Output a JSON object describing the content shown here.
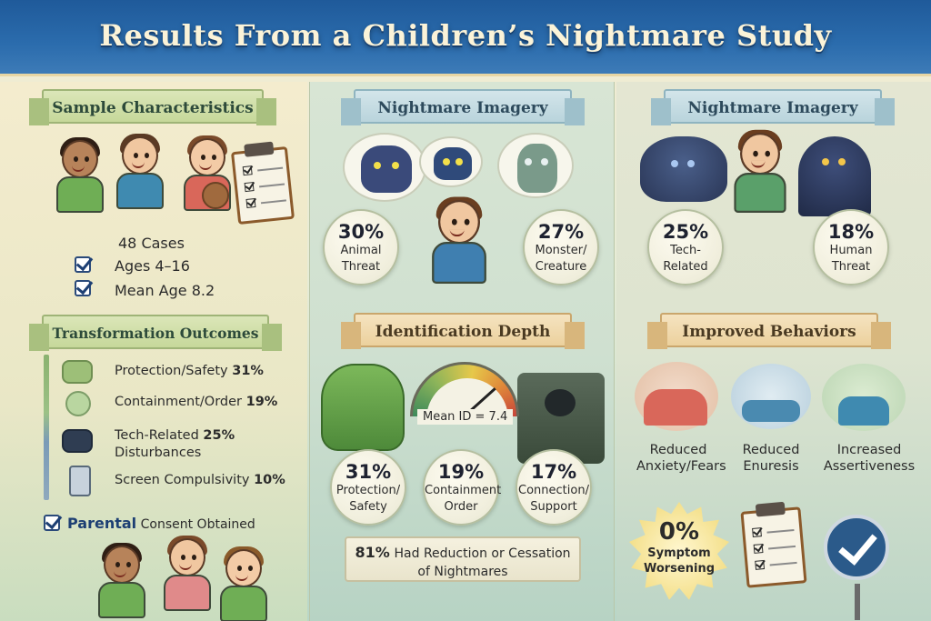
{
  "title": "Results From a Children’s Nightmare Study",
  "sample": {
    "heading": "Sample Characteristics",
    "cases": "48 Cases",
    "ages": "Ages 4–16",
    "mean_age": "Mean Age 8.2"
  },
  "outcomes": {
    "heading": "Transformation Outcomes",
    "items": [
      {
        "label": "Protection/Safety",
        "pct": "31%",
        "color": "#7fa36a",
        "icon": "shoes-icon"
      },
      {
        "label": "Containment/Order",
        "pct": "19%",
        "color": "#9cbf86",
        "icon": "ghost-icon"
      },
      {
        "label": "Tech-Related",
        "pct": "25%",
        "label2": "Disturbances",
        "color": "#6d8fae",
        "icon": "tablet-icon"
      },
      {
        "label": "Screen Compulsivity",
        "pct": "10%",
        "color": "#8fa9bd",
        "icon": "phone-icon"
      }
    ],
    "consent_bold": "Parental",
    "consent_rest": "Consent Obtained"
  },
  "imagery_mid": {
    "heading": "Nightmare Imagery",
    "left": {
      "pct": "30%",
      "line1": "Animal",
      "line2": "Threat"
    },
    "right": {
      "pct": "27%",
      "line1": "Monster/",
      "line2": "Creature"
    }
  },
  "imagery_right": {
    "heading": "Nightmare Imagery",
    "left": {
      "pct": "25%",
      "line1": "Tech-",
      "line2": "Related"
    },
    "right": {
      "pct": "18%",
      "line1": "Human",
      "line2": "Threat"
    }
  },
  "identification": {
    "heading": "Identification Depth",
    "mean": "Mean ID = 7.4",
    "stats": [
      {
        "pct": "31%",
        "line1": "Protection/",
        "line2": "Safety"
      },
      {
        "pct": "19%",
        "line1": "Containment",
        "line2": "Order"
      },
      {
        "pct": "17%",
        "line1": "Connection/",
        "line2": "Support"
      }
    ],
    "banner_bold": "81%",
    "banner_rest": "Had Reduction or Cessation",
    "banner_line2": "of Nightmares"
  },
  "behaviors": {
    "heading": "Improved Behaviors",
    "items": [
      {
        "line1": "Reduced",
        "line2": "Anxiety/Fears"
      },
      {
        "line1": "Reduced",
        "line2": "Enuresis"
      },
      {
        "line1": "Increased",
        "line2": "Assertiveness"
      }
    ],
    "zero_pct": "0%",
    "zero_line1": "Symptom",
    "zero_line2": "Worsening"
  },
  "colors": {
    "header": "#2b6cad",
    "title_text": "#fbf3d8",
    "check": "#1d3f73"
  }
}
